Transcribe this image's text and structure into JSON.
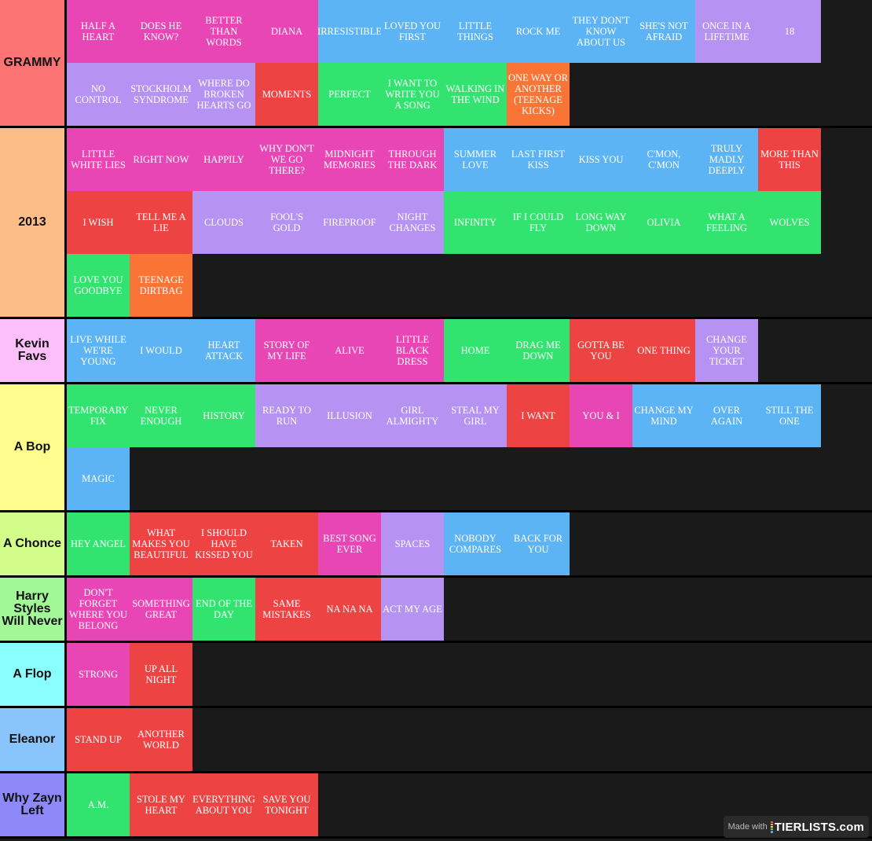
{
  "colors": {
    "pink": "#e845b5",
    "blue": "#5db4f5",
    "purple": "#b693f2",
    "red": "#ee4343",
    "green": "#32e46f",
    "orange": "#fa7435"
  },
  "tiers": [
    {
      "name": "GRAMMY",
      "color": "#fb7373",
      "items": [
        {
          "t": "HALF A HEART",
          "c": "pink"
        },
        {
          "t": "DOES HE KNOW?",
          "c": "pink"
        },
        {
          "t": "BETTER THAN WORDS",
          "c": "pink"
        },
        {
          "t": "DIANA",
          "c": "pink"
        },
        {
          "t": "IRRESISTIBLE",
          "c": "blue"
        },
        {
          "t": "LOVED YOU FIRST",
          "c": "blue"
        },
        {
          "t": "LITTLE THINGS",
          "c": "blue"
        },
        {
          "t": "ROCK ME",
          "c": "blue"
        },
        {
          "t": "THEY DON'T KNOW ABOUT US",
          "c": "blue"
        },
        {
          "t": "SHE'S NOT AFRAID",
          "c": "blue"
        },
        {
          "t": "ONCE IN A LIFETIME",
          "c": "purple"
        },
        {
          "t": "18",
          "c": "purple"
        },
        {
          "t": "NO CONTROL",
          "c": "purple"
        },
        {
          "t": "STOCKHOLM SYNDROME",
          "c": "purple"
        },
        {
          "t": "WHERE DO BROKEN HEARTS GO",
          "c": "purple"
        },
        {
          "t": "MOMENTS",
          "c": "red"
        },
        {
          "t": "PERFECT",
          "c": "green"
        },
        {
          "t": "I WANT TO WRITE YOU A SONG",
          "c": "green"
        },
        {
          "t": "WALKING IN THE WIND",
          "c": "green"
        },
        {
          "t": "ONE WAY OR ANOTHER (TEENAGE KICKS)",
          "c": "orange"
        }
      ]
    },
    {
      "name": "2013",
      "color": "#fcbd86",
      "items": [
        {
          "t": "LITTLE WHITE LIES",
          "c": "pink"
        },
        {
          "t": "RIGHT NOW",
          "c": "pink"
        },
        {
          "t": "HAPPILY",
          "c": "pink"
        },
        {
          "t": "WHY DON'T WE GO THERE?",
          "c": "pink"
        },
        {
          "t": "MIDNIGHT MEMORIES",
          "c": "pink"
        },
        {
          "t": "THROUGH THE DARK",
          "c": "pink"
        },
        {
          "t": "SUMMER LOVE",
          "c": "blue"
        },
        {
          "t": "LAST FIRST KISS",
          "c": "blue"
        },
        {
          "t": "KISS YOU",
          "c": "blue"
        },
        {
          "t": "C'MON, C'MON",
          "c": "blue"
        },
        {
          "t": "TRULY MADLY DEEPLY",
          "c": "blue"
        },
        {
          "t": "MORE THAN THIS",
          "c": "red"
        },
        {
          "t": "I WISH",
          "c": "red"
        },
        {
          "t": "TELL ME A LIE",
          "c": "red"
        },
        {
          "t": "CLOUDS",
          "c": "purple"
        },
        {
          "t": "FOOL'S GOLD",
          "c": "purple"
        },
        {
          "t": "FIREPROOF",
          "c": "purple"
        },
        {
          "t": "NIGHT CHANGES",
          "c": "purple"
        },
        {
          "t": "INFINITY",
          "c": "green"
        },
        {
          "t": "IF I COULD FLY",
          "c": "green"
        },
        {
          "t": "LONG WAY DOWN",
          "c": "green"
        },
        {
          "t": "OLIVIA",
          "c": "green"
        },
        {
          "t": "WHAT A FEELING",
          "c": "green"
        },
        {
          "t": "WOLVES",
          "c": "green"
        },
        {
          "t": "LOVE YOU GOODBYE",
          "c": "green"
        },
        {
          "t": "TEENAGE DIRTBAG",
          "c": "orange"
        }
      ]
    },
    {
      "name": "Kevin Favs",
      "color": "#fdbffa",
      "items": [
        {
          "t": "LIVE WHILE WE'RE YOUNG",
          "c": "blue"
        },
        {
          "t": "I WOULD",
          "c": "blue"
        },
        {
          "t": "HEART ATTACK",
          "c": "blue"
        },
        {
          "t": "STORY OF MY LIFE",
          "c": "pink"
        },
        {
          "t": "ALIVE",
          "c": "pink"
        },
        {
          "t": "LITTLE BLACK DRESS",
          "c": "pink"
        },
        {
          "t": "HOME",
          "c": "green"
        },
        {
          "t": "DRAG ME DOWN",
          "c": "green"
        },
        {
          "t": "GOTTA BE YOU",
          "c": "red"
        },
        {
          "t": "ONE THING",
          "c": "red"
        },
        {
          "t": "CHANGE YOUR TICKET",
          "c": "purple"
        }
      ]
    },
    {
      "name": "A Bop",
      "color": "#fdfc8c",
      "items": [
        {
          "t": "TEMPORARY FIX",
          "c": "green"
        },
        {
          "t": "NEVER ENOUGH",
          "c": "green"
        },
        {
          "t": "HISTORY",
          "c": "green"
        },
        {
          "t": "READY TO RUN",
          "c": "purple"
        },
        {
          "t": "ILLUSION",
          "c": "purple"
        },
        {
          "t": "GIRL ALMIGHTY",
          "c": "purple"
        },
        {
          "t": "STEAL MY GIRL",
          "c": "purple"
        },
        {
          "t": "I WANT",
          "c": "red"
        },
        {
          "t": "YOU & I",
          "c": "pink"
        },
        {
          "t": "CHANGE MY MIND",
          "c": "blue"
        },
        {
          "t": "OVER AGAIN",
          "c": "blue"
        },
        {
          "t": "STILL THE ONE",
          "c": "blue"
        },
        {
          "t": "MAGIC",
          "c": "blue"
        }
      ]
    },
    {
      "name": "A Chonce",
      "color": "#d3fd8b",
      "items": [
        {
          "t": "HEY ANGEL",
          "c": "green"
        },
        {
          "t": "WHAT MAKES YOU BEAUTIFUL",
          "c": "red"
        },
        {
          "t": "I SHOULD HAVE KISSED YOU",
          "c": "red"
        },
        {
          "t": "TAKEN",
          "c": "red"
        },
        {
          "t": "BEST SONG EVER",
          "c": "pink"
        },
        {
          "t": "SPACES",
          "c": "purple"
        },
        {
          "t": "NOBODY COMPARES",
          "c": "blue"
        },
        {
          "t": "BACK FOR YOU",
          "c": "blue"
        }
      ]
    },
    {
      "name": "Harry Styles Will Never",
      "color": "#a2f897",
      "items": [
        {
          "t": "DON'T FORGET WHERE YOU BELONG",
          "c": "pink"
        },
        {
          "t": "SOMETHING GREAT",
          "c": "pink"
        },
        {
          "t": "END OF THE DAY",
          "c": "green"
        },
        {
          "t": "SAME MISTAKES",
          "c": "red"
        },
        {
          "t": "NA NA NA",
          "c": "red"
        },
        {
          "t": "ACT MY AGE",
          "c": "purple"
        }
      ]
    },
    {
      "name": "A Flop",
      "color": "#8afdfd",
      "items": [
        {
          "t": "STRONG",
          "c": "pink"
        },
        {
          "t": "UP ALL NIGHT",
          "c": "red"
        }
      ]
    },
    {
      "name": "Eleanor",
      "color": "#89c5fc",
      "items": [
        {
          "t": "STAND UP",
          "c": "red"
        },
        {
          "t": "ANOTHER WORLD",
          "c": "red"
        }
      ]
    },
    {
      "name": "Why Zayn Left",
      "color": "#8d89fb",
      "items": [
        {
          "t": "A.M.",
          "c": "green"
        },
        {
          "t": "STOLE MY HEART",
          "c": "red"
        },
        {
          "t": "EVERYTHING ABOUT YOU",
          "c": "red"
        },
        {
          "t": "SAVE YOU TONIGHT",
          "c": "red"
        }
      ]
    }
  ],
  "watermark": {
    "made_with": "Made with",
    "brand": "TIERLISTS.com",
    "logo_colors": [
      "#f05a5a",
      "#f5a742",
      "#f3e14b",
      "#5ad06a",
      "#4da8f0"
    ]
  }
}
